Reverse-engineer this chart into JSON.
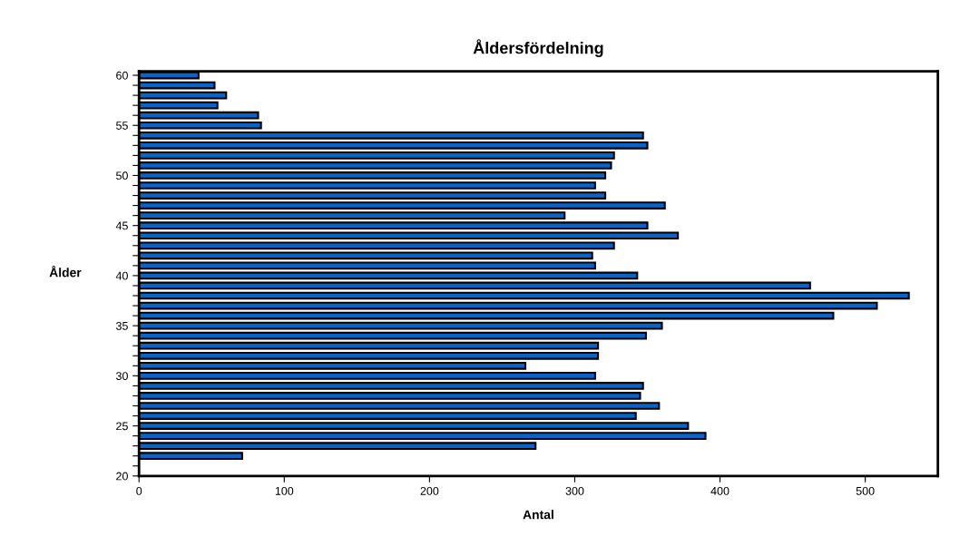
{
  "chart_data": {
    "type": "bar",
    "orientation": "horizontal",
    "title": "Åldersfördelning",
    "xlabel": "Antal",
    "ylabel": "Ålder",
    "x": [
      22,
      23,
      24,
      25,
      26,
      27,
      28,
      29,
      30,
      31,
      32,
      33,
      34,
      35,
      36,
      37,
      38,
      39,
      40,
      41,
      42,
      43,
      44,
      45,
      46,
      47,
      48,
      49,
      50,
      51,
      52,
      53,
      54,
      55,
      56,
      57,
      58,
      59,
      60
    ],
    "values": [
      71,
      273,
      390,
      378,
      342,
      358,
      345,
      347,
      314,
      266,
      316,
      316,
      349,
      360,
      478,
      508,
      530,
      462,
      343,
      314,
      312,
      327,
      371,
      350,
      293,
      362,
      321,
      314,
      321,
      325,
      327,
      350,
      347,
      84,
      82,
      54,
      60,
      52,
      41
    ],
    "color": "#0a64c8",
    "xlim": [
      0,
      550
    ],
    "xticks": [
      0,
      100,
      200,
      300,
      400,
      500
    ],
    "ylim": [
      20,
      60.4
    ],
    "yticks": [
      20,
      {
        "value": 21,
        "label": null
      },
      {
        "value": 22,
        "label": null
      },
      {
        "value": 23,
        "label": null
      },
      {
        "value": 24,
        "label": null
      },
      25,
      {
        "value": 26,
        "label": null
      },
      {
        "value": 27,
        "label": null
      },
      {
        "value": 28,
        "label": null
      },
      {
        "value": 29,
        "label": null
      },
      30,
      {
        "value": 31,
        "label": null
      },
      {
        "value": 32,
        "label": null
      },
      {
        "value": 33,
        "label": null
      },
      {
        "value": 34,
        "label": null
      },
      35,
      {
        "value": 36,
        "label": null
      },
      {
        "value": 37,
        "label": null
      },
      {
        "value": 38,
        "label": null
      },
      {
        "value": 39,
        "label": null
      },
      40,
      {
        "value": 41,
        "label": null
      },
      {
        "value": 42,
        "label": null
      },
      {
        "value": 43,
        "label": null
      },
      {
        "value": 44,
        "label": null
      },
      45,
      {
        "value": 46,
        "label": null
      },
      {
        "value": 47,
        "label": null
      },
      {
        "value": 48,
        "label": null
      },
      {
        "value": 49,
        "label": null
      },
      50,
      {
        "value": 51,
        "label": null
      },
      {
        "value": 52,
        "label": null
      },
      {
        "value": 53,
        "label": null
      },
      {
        "value": 54,
        "label": null
      },
      55,
      {
        "value": 56,
        "label": null
      },
      {
        "value": 57,
        "label": null
      },
      {
        "value": 58,
        "label": null
      },
      {
        "value": 59,
        "label": null
      },
      60
    ],
    "grid": false
  }
}
